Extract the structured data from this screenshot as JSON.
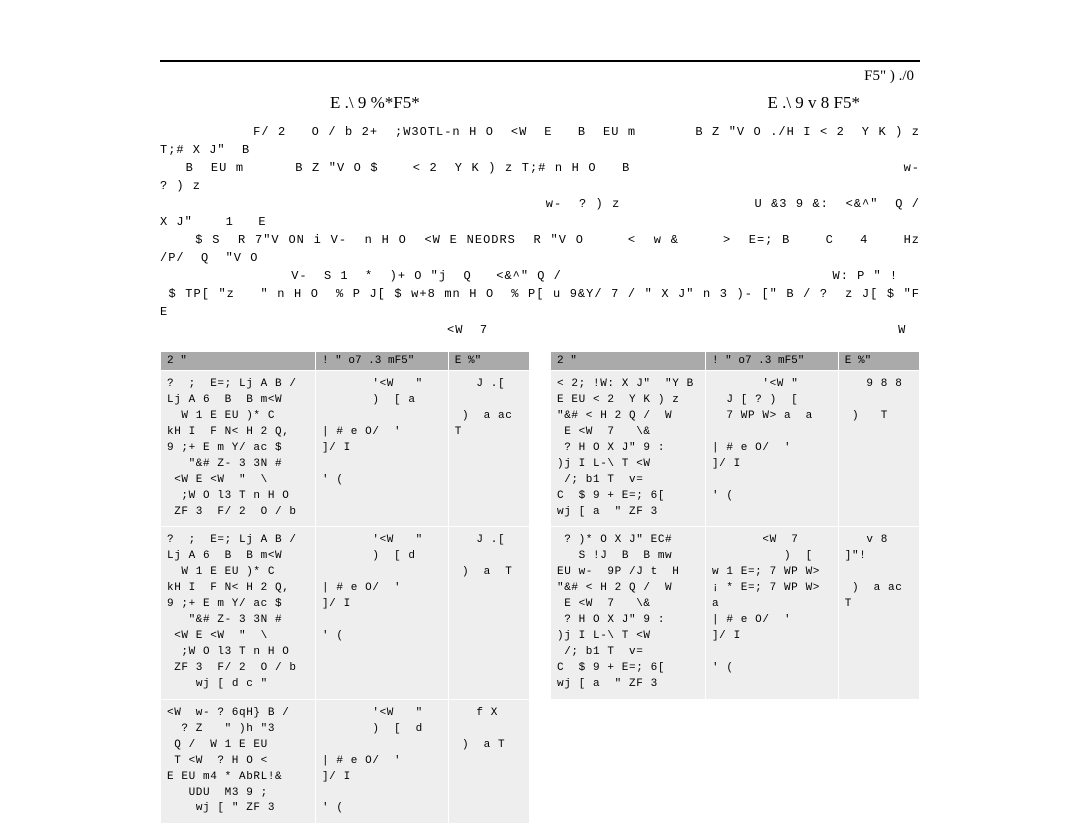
{
  "page_ref": "F5\"  )   ./0",
  "heading_left": "E   .\\ 9      %*F5*",
  "heading_right": "E   .\\ 9 v 8   F5*",
  "body_paragraph": "           F/ 2   O / b 2+  ;W3OTL-n H O  <W  E   B  EU m       B Z \"V O ./H I < 2  Y K ) z T;# X J\"  B\n   B  EU m      B Z \"V O $    < 2  Y K ) z T;# n H O   B                                w-  ? ) z\n                                              w-  ? ) z                U &3 9 &:  <&^\"  Q /   X J\"    1   E\n    $ S  R 7\"V ON i V-  n H O  <W E NEODRS  R \"V O     <  w &     >  E=; B    C   4    Hz /P/  Q  \"V O\n                V-  S 1  *  )+ O \"j  Q   <&^\" Q /                                 W: P \" !\n $ TP[ \"z   \" n H O  % P J[ $ w+8 mn H O  % P[ u 9&Y/ 7 / \" X J\" n 3 )- [\" B / ?  z J[ $ \"F   E\n                                   <W  7                                                  W",
  "left_table": {
    "headers": [
      "2 \"",
      "! \" o7 .3 mF5\"",
      "E %\""
    ],
    "rows": [
      {
        "c1": "?  ;  E=; Lj A B /\nLj A 6  B  B m<W\n  W 1 E EU )* C\nkH I  F N< H 2 Q,\n9 ;+ E m Y/ ac $\n   \"&# Z- 3 3N #\n <W E <W  \"  \\\n  ;W O l3 T n H O\n ZF 3  F/ 2  O / b",
        "c2": "       '<W   \"\n       )  [ a\n\n| # e O/  '    ]/ I\n                ' (",
        "c3": "   J .[\n\n )  a ac T"
      },
      {
        "c1": "?  ;  E=; Lj A B /\nLj A 6  B  B m<W\n  W 1 E EU )* C\nkH I  F N< H 2 Q,\n9 ;+ E m Y/ ac $\n   \"&# Z- 3 3N #\n <W E <W  \"  \\\n  ;W O l3 T n H O\n ZF 3  F/ 2  O / b\n    wj [ d c \"",
        "c2": "       '<W   \"\n       )  [ d\n\n| # e O/  '    ]/ I\n                ' (",
        "c3": "   J .[\n\n )  a  T"
      },
      {
        "c1": "<W  w- ? 6qH} B /\n  ? Z   \" )h \"3\n Q /  W 1 E EU\n T <W  ? H O <\nE EU m4 * AbRL!&\n   UDU  M3 9 ;\n    wj [ \" ZF 3",
        "c2": "       '<W   \"\n       )  [  d\n\n| # e O/  '    ]/ I\n                ' (",
        "c3": "   f X\n\n )  a T"
      }
    ]
  },
  "right_table": {
    "headers": [
      "2 \"",
      "! \" o7 .3 mF5\"",
      "E %\""
    ],
    "rows": [
      {
        "c1": "< 2; !W: X J\"  \"Y B\nE EU < 2  Y K ) z\n\"&# < H 2 Q /  W\n E <W  7   \\&\n ? H O X J\" 9 :\n)j I L-\\ T <W\n /; b1 T  v=\nC  $ 9 + E=; 6[\nwj [ a  \" ZF 3",
        "c2": "       '<W \"\n  J [ ? )  [\n  7 WP W> a  a\n\n| # e O/  '    ]/ I\n                ' (",
        "c3": "   9 8 8\n\n )   T"
      },
      {
        "c1": " ? )* O X J\" EC#\n   S !J  B  B mw\nEU w-  9P /J t  H\n\"&# < H 2 Q /  W\n E <W  7   \\&\n ? H O X J\" 9 :\n)j I L-\\ T <W\n /; b1 T  v=\nC  $ 9 + E=; 6[\nwj [ a  \" ZF 3",
        "c2": "       <W  7\n          )  [\nw 1 E=; 7 WP W>\n¡ * E=; 7 WP W> a\n| # e O/  '    ]/ I\n                ' (",
        "c3": "   v 8  ]\"!\n\n )  a ac T"
      }
    ]
  }
}
